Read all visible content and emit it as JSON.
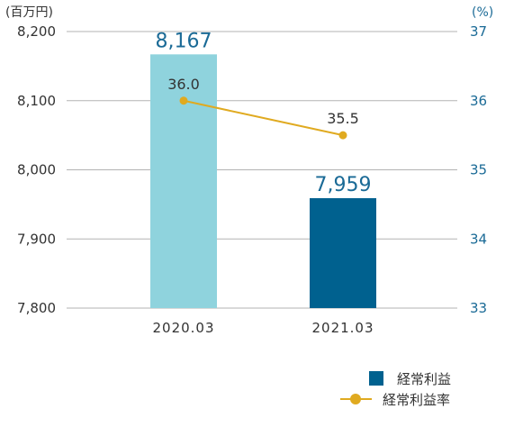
{
  "chart_data": {
    "type": "bar",
    "categories": [
      "2020.03",
      "2021.03"
    ],
    "series": [
      {
        "name": "経常利益",
        "type": "bar",
        "axis": "left",
        "values": [
          8167,
          7959
        ],
        "labels": [
          "8,167",
          "7,959"
        ],
        "colors": [
          "#8fd3dd",
          "#00618f"
        ]
      },
      {
        "name": "経常利益率",
        "type": "line",
        "axis": "right",
        "values": [
          36.0,
          35.5
        ],
        "labels": [
          "36.0",
          "35.5"
        ],
        "color": "#e0aa20"
      }
    ],
    "y_left": {
      "unit": "(百万円)",
      "ylim": [
        7800,
        8200
      ],
      "ticks": [
        7800,
        7900,
        8000,
        8100,
        8200
      ],
      "tick_labels": [
        "7,800",
        "7,900",
        "8,000",
        "8,100",
        "8,200"
      ]
    },
    "y_right": {
      "unit": "(%)",
      "ylim": [
        33,
        37
      ],
      "ticks": [
        33,
        34,
        35,
        36,
        37
      ],
      "tick_labels": [
        "33",
        "34",
        "35",
        "36",
        "37"
      ]
    },
    "grid": true,
    "legend_position": "bottom-right",
    "colors": {
      "grid": "#b3b3b3",
      "right_axis_text": "#1a6a96",
      "bar_label": "#1a6a96"
    }
  }
}
